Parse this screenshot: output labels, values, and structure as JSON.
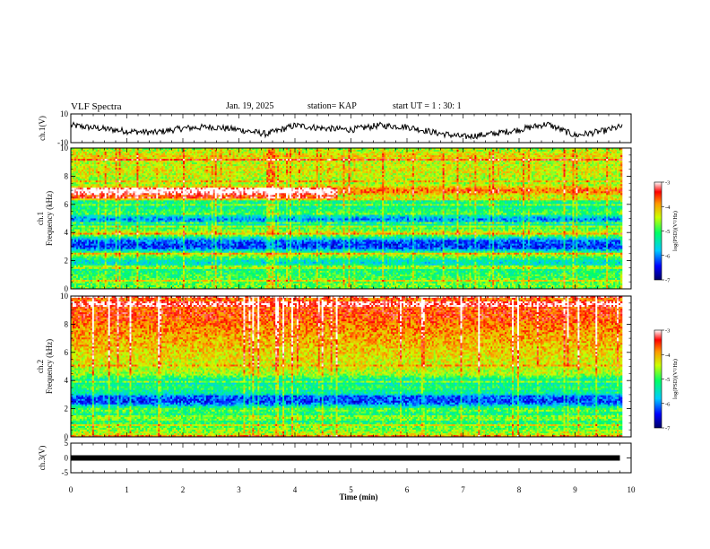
{
  "header": {
    "title": "VLF Spectra",
    "date": "Jan. 19, 2025",
    "station": "station= KAP",
    "start_ut": "start UT =  1 : 30: 1"
  },
  "chart_data": [
    {
      "type": "line",
      "panel": "ch1-waveform",
      "ylabel": "ch.1(V)",
      "ylim": [
        -10,
        10
      ],
      "yticks": [
        "10",
        "-10"
      ],
      "xlim": [
        0,
        10
      ],
      "x": [
        0,
        0.5,
        1,
        1.5,
        2,
        2.5,
        3,
        3.5,
        4,
        4.5,
        5,
        5.5,
        6,
        6.5,
        7,
        7.5,
        8,
        8.5,
        9,
        9.5,
        9.8
      ],
      "y": [
        2,
        0,
        -2,
        -3,
        0,
        1,
        -1,
        -4,
        2,
        0,
        -1,
        2,
        1,
        -3,
        -6,
        -4,
        -1,
        3,
        -5,
        -2,
        1
      ]
    },
    {
      "type": "heatmap",
      "panel": "ch1-spectrogram",
      "ylabel": "ch.1\nFrequency (kHz)",
      "ylim": [
        0,
        10
      ],
      "yticks": [
        "0",
        "2",
        "4",
        "6",
        "8",
        "10"
      ],
      "xlim": [
        0,
        10
      ],
      "colorbar": {
        "label": "log(PSD)(V²/Hz)",
        "range": [
          -7,
          -3
        ],
        "ticks": [
          "-3",
          "-4",
          "-5",
          "-6",
          "-7"
        ]
      },
      "profile_khz": [
        0.3,
        1,
        1.5,
        2,
        2.5,
        3,
        3.5,
        4,
        4.5,
        5,
        5.5,
        6,
        6.5,
        7,
        7.5,
        8,
        8.5,
        9,
        9.5,
        10
      ],
      "profile_log_psd": [
        -4.8,
        -5.0,
        -5.2,
        -5.6,
        -4.5,
        -6.4,
        -6.1,
        -4.3,
        -5.2,
        -6.0,
        -5.0,
        -5.4,
        -4.9,
        -3.6,
        -4.6,
        -4.5,
        -4.3,
        -4.5,
        -4.2,
        -4.6
      ]
    },
    {
      "type": "heatmap",
      "panel": "ch2-spectrogram",
      "ylabel": "ch.2\nFrequency (kHz)",
      "ylim": [
        0,
        10
      ],
      "yticks": [
        "0",
        "2",
        "4",
        "6",
        "8",
        "10"
      ],
      "xlim": [
        0,
        10
      ],
      "colorbar": {
        "label": "log(PSD)(V²/Hz)",
        "range": [
          -7,
          -3
        ],
        "ticks": [
          "-3",
          "-4",
          "-5",
          "-6",
          "-7"
        ]
      },
      "profile_khz": [
        0.3,
        1,
        1.5,
        2,
        2.5,
        3,
        3.5,
        4,
        4.5,
        5,
        5.5,
        6,
        6.5,
        7,
        7.5,
        8,
        8.5,
        9,
        9.5,
        10
      ],
      "profile_log_psd": [
        -4.5,
        -5.0,
        -5.4,
        -4.8,
        -6.3,
        -6.1,
        -5.0,
        -5.5,
        -4.6,
        -4.4,
        -4.3,
        -4.2,
        -4.1,
        -4.0,
        -3.9,
        -3.8,
        -3.6,
        -3.6,
        -3.6,
        -3.8
      ]
    },
    {
      "type": "line",
      "panel": "ch3-waveform",
      "ylabel": "ch.3(V)",
      "ylim": [
        -5,
        5
      ],
      "yticks": [
        "5",
        "0",
        "-5"
      ],
      "xlim": [
        0,
        10
      ],
      "x": [
        0,
        9.8
      ],
      "y": [
        0,
        0
      ]
    }
  ],
  "xaxis": {
    "label": "Time (min)",
    "ticks": [
      "0",
      "1",
      "2",
      "3",
      "4",
      "5",
      "6",
      "7",
      "8",
      "9",
      "10"
    ]
  }
}
